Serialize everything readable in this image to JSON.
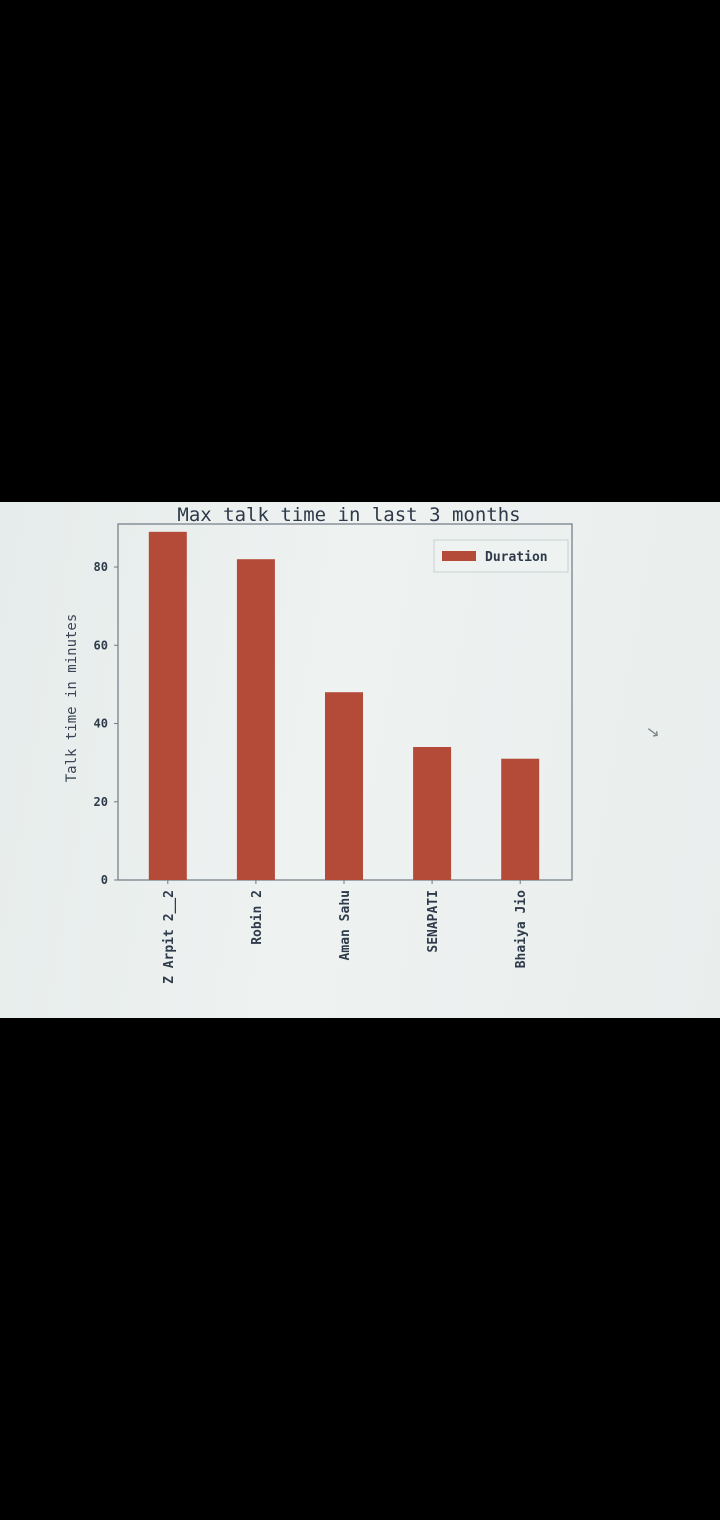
{
  "colors": {
    "bar": "#b44a38",
    "axes": "#6f7a83",
    "background": "#eaefee"
  },
  "chart_data": {
    "type": "bar",
    "title": "Max talk time in last 3 months",
    "xlabel": "",
    "ylabel": "Talk time in minutes",
    "categories": [
      "Z Arpit 2__2",
      "Robin 2",
      "Aman Sahu",
      "SENAPATI",
      "Bhaiya Jio"
    ],
    "series": [
      {
        "name": "Duration",
        "values": [
          89,
          82,
          48,
          34,
          31
        ]
      }
    ],
    "yticks": [
      0,
      20,
      40,
      60,
      80
    ],
    "ylim": [
      0,
      91
    ],
    "legend": "top-right",
    "grid": false
  }
}
